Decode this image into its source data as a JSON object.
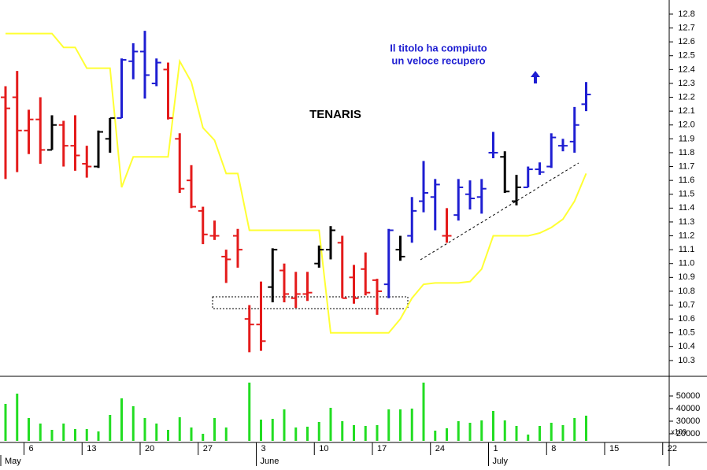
{
  "chart_data": [
    {
      "type": "ohlc",
      "title": "TENARIS",
      "annotation": [
        "Il titolo ha compiuto",
        "un veloce recupero"
      ],
      "colors": {
        "up": "#1e1ed2",
        "down": "#e41b1b",
        "neutral": "#000000"
      },
      "bar_color": [
        "down",
        "down",
        "down",
        "down",
        "neutral",
        "down",
        "down",
        "down",
        "neutral",
        "neutral",
        "up",
        "up",
        "up",
        "up",
        "down",
        "down",
        "down",
        "down",
        "down",
        "down",
        "down",
        "down",
        "down",
        "neutral",
        "down",
        "down",
        "down",
        "neutral",
        "neutral",
        "down",
        "down",
        "down",
        "down",
        "up",
        "neutral",
        "up",
        "up",
        "up",
        "down",
        "up",
        "up",
        "up",
        "up",
        "neutral",
        "neutral",
        "up",
        "up",
        "up",
        "up",
        "up",
        "up",
        null,
        null,
        null,
        null,
        null,
        null,
        null
      ],
      "open": [
        12.2,
        12.2,
        11.96,
        12.04,
        11.82,
        12.0,
        11.85,
        11.72,
        11.7,
        11.9,
        12.05,
        12.46,
        12.53,
        12.3,
        12.4,
        11.9,
        11.6,
        11.38,
        11.2,
        11.05,
        11.2,
        10.6,
        10.56,
        10.83,
        10.95,
        10.75,
        10.78,
        11.0,
        11.1,
        11.15,
        10.9,
        10.96,
        10.88,
        10.85,
        11.1,
        11.2,
        11.45,
        11.48,
        11.2,
        11.35,
        11.5,
        11.48,
        11.8,
        11.77,
        11.45,
        11.55,
        11.68,
        11.7,
        11.85,
        11.88,
        12.15,
        null,
        null,
        null,
        null,
        null,
        null,
        null
      ],
      "high": [
        12.28,
        12.39,
        12.11,
        12.2,
        12.07,
        12.03,
        12.07,
        11.85,
        11.96,
        12.05,
        12.48,
        12.59,
        12.68,
        12.48,
        12.45,
        11.94,
        11.71,
        11.41,
        11.31,
        11.1,
        11.25,
        10.7,
        10.87,
        11.11,
        11.0,
        10.94,
        10.94,
        11.13,
        11.27,
        11.2,
        10.99,
        11.08,
        10.89,
        11.25,
        11.2,
        11.48,
        11.74,
        11.61,
        11.4,
        11.61,
        11.6,
        11.61,
        11.95,
        11.81,
        11.64,
        11.7,
        11.73,
        11.94,
        11.9,
        12.13,
        12.31,
        null,
        null,
        null,
        null,
        null,
        null,
        null
      ],
      "low": [
        11.61,
        11.66,
        11.79,
        11.72,
        11.82,
        11.7,
        11.67,
        11.62,
        11.69,
        11.8,
        12.05,
        12.33,
        12.19,
        12.28,
        12.04,
        11.51,
        11.4,
        11.14,
        11.17,
        10.86,
        10.97,
        10.36,
        10.37,
        10.72,
        10.72,
        10.68,
        10.73,
        10.97,
        11.03,
        10.75,
        10.71,
        10.77,
        10.63,
        10.75,
        11.02,
        11.15,
        11.37,
        11.24,
        11.15,
        11.31,
        11.39,
        11.36,
        11.76,
        11.51,
        11.42,
        11.55,
        11.64,
        11.69,
        11.81,
        11.8,
        12.1,
        null,
        null,
        null,
        null,
        null,
        null,
        null
      ],
      "close": [
        12.12,
        11.96,
        12.04,
        11.82,
        12.0,
        11.85,
        11.78,
        11.7,
        11.95,
        12.05,
        12.47,
        12.53,
        12.36,
        12.45,
        12.05,
        11.54,
        11.41,
        11.21,
        11.2,
        11.03,
        11.1,
        10.56,
        10.44,
        11.1,
        10.78,
        10.78,
        10.79,
        11.1,
        11.24,
        10.75,
        10.75,
        10.79,
        10.8,
        11.24,
        11.05,
        11.38,
        11.51,
        11.57,
        11.2,
        11.55,
        11.47,
        11.54,
        11.8,
        11.52,
        11.55,
        11.68,
        11.66,
        11.91,
        11.85,
        12.0,
        12.22,
        null,
        null,
        null,
        null,
        null,
        null,
        null
      ],
      "line": {
        "color": "#ffff33",
        "values": [
          12.66,
          12.66,
          12.66,
          12.66,
          12.66,
          12.56,
          12.56,
          12.41,
          12.41,
          12.41,
          11.55,
          11.77,
          11.77,
          11.77,
          11.77,
          12.46,
          12.31,
          11.98,
          11.89,
          11.65,
          11.65,
          11.24,
          11.24,
          11.24,
          11.24,
          11.24,
          11.24,
          11.24,
          10.5,
          10.5,
          10.5,
          10.5,
          10.5,
          10.5,
          10.6,
          10.75,
          10.85,
          10.86,
          10.86,
          10.86,
          10.87,
          10.96,
          11.2,
          11.2,
          11.2,
          11.2,
          11.22,
          11.26,
          11.32,
          11.45,
          11.65,
          null,
          null,
          null,
          null,
          null,
          null,
          null
        ]
      },
      "ylim": [
        10.186,
        12.902
      ],
      "yticks": [
        10.3,
        10.4,
        10.5,
        10.6,
        10.7,
        10.8,
        10.9,
        {
          "value": 11,
          "label": "11.0"
        },
        11.1,
        11.2,
        11.3,
        11.4,
        11.5,
        11.6,
        11.7,
        11.8,
        11.9,
        {
          "value": 12,
          "label": "12.0"
        },
        12.1,
        12.2,
        12.3,
        12.4,
        12.5,
        12.6,
        12.7,
        12.8
      ]
    },
    {
      "type": "bar",
      "color": "#22dd22",
      "unit": "x100",
      "categories": [
        null,
        null,
        "6",
        null,
        null,
        null,
        null,
        "13",
        null,
        null,
        null,
        null,
        "20",
        null,
        null,
        null,
        null,
        "27",
        null,
        null,
        null,
        null,
        "3",
        null,
        null,
        null,
        null,
        "10",
        null,
        null,
        null,
        null,
        "17",
        null,
        null,
        null,
        null,
        "24",
        null,
        null,
        null,
        null,
        "1",
        null,
        null,
        null,
        null,
        "8",
        null,
        null,
        null,
        null,
        "15",
        null,
        null,
        null,
        null,
        "22"
      ],
      "months": [
        "May",
        null,
        null,
        null,
        null,
        null,
        null,
        null,
        null,
        null,
        null,
        null,
        null,
        null,
        null,
        null,
        null,
        null,
        null,
        null,
        null,
        null,
        "June",
        null,
        null,
        null,
        null,
        null,
        null,
        null,
        null,
        null,
        null,
        null,
        null,
        null,
        null,
        null,
        null,
        null,
        null,
        null,
        "July",
        null,
        null,
        null,
        null,
        null,
        null,
        null,
        null,
        null,
        null,
        null,
        null,
        null,
        null,
        null
      ],
      "values": [
        43750,
        51875,
        32500,
        28125,
        23125,
        28125,
        23750,
        23750,
        21875,
        35000,
        48125,
        41875,
        32500,
        28125,
        23125,
        33125,
        25000,
        20000,
        32500,
        25000,
        null,
        60625,
        31250,
        31875,
        39375,
        25000,
        25625,
        29375,
        40625,
        30000,
        26875,
        26250,
        26875,
        39375,
        39375,
        40000,
        60625,
        22500,
        24375,
        30000,
        28750,
        30625,
        38125,
        30625,
        26250,
        19375,
        26250,
        28750,
        26875,
        32500,
        34375,
        null,
        null,
        null,
        null,
        null,
        null,
        null
      ],
      "ylim": [
        14375,
        64375
      ],
      "yticks": [
        20000,
        30000,
        40000,
        50000
      ]
    }
  ]
}
